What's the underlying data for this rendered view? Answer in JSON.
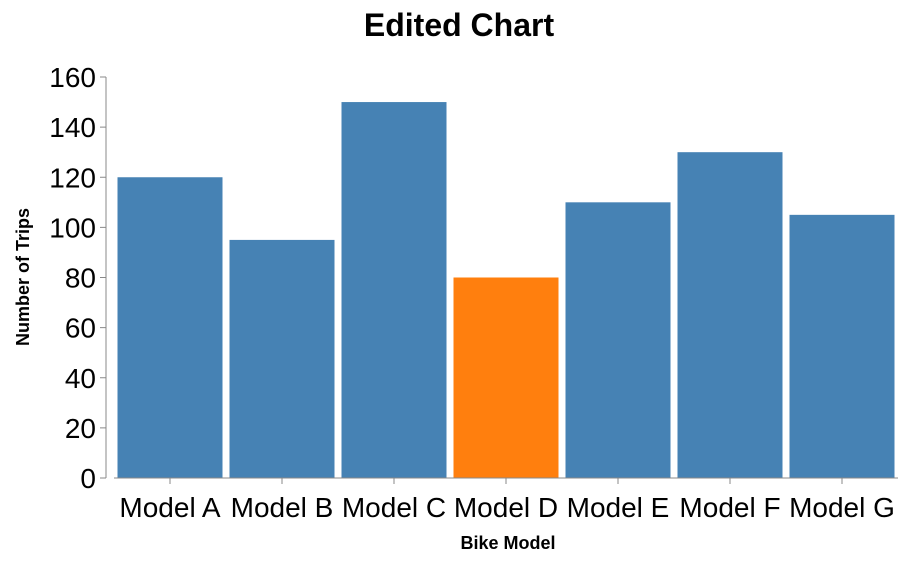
{
  "chart_data": {
    "type": "bar",
    "title": "Edited Chart",
    "xlabel": "Bike Model",
    "ylabel": "Number of Trips",
    "categories": [
      "Model A",
      "Model B",
      "Model C",
      "Model D",
      "Model E",
      "Model F",
      "Model G"
    ],
    "values": [
      120,
      95,
      150,
      80,
      110,
      130,
      105
    ],
    "highlight_index": 3,
    "ylim": [
      0,
      160
    ],
    "yticks": [
      0,
      20,
      40,
      60,
      80,
      100,
      120,
      140,
      160
    ],
    "colors": {
      "bar": "#4682b4",
      "highlight": "#ff7f0e"
    },
    "grid": false,
    "legend": "none"
  }
}
